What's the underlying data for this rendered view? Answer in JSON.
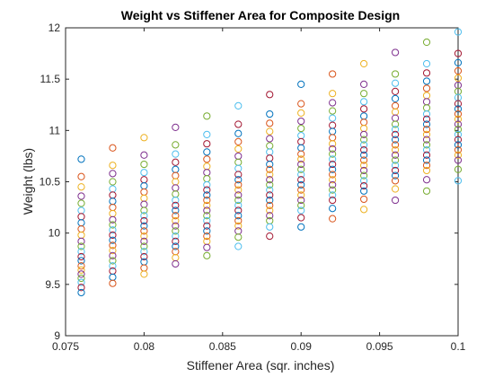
{
  "chart_data": {
    "type": "scatter",
    "title": "Weight vs Stiffener Area for Composite Design",
    "xlabel": "Stiffener Area (sqr. inches)",
    "ylabel": "Weight (lbs)",
    "xlim": [
      0.075,
      0.1
    ],
    "ylim": [
      9,
      12
    ],
    "grid": false,
    "legend": "none",
    "marker": "open-circle",
    "xticks": [
      0.075,
      0.08,
      0.085,
      0.09,
      0.095,
      0.1
    ],
    "xtick_labels": [
      "0.075",
      "0.08",
      "0.085",
      "0.09",
      "0.095",
      "0.1"
    ],
    "yticks": [
      9,
      9.5,
      10,
      10.5,
      11,
      11.5,
      12
    ],
    "ytick_labels": [
      "9",
      "9.5",
      "10",
      "10.5",
      "11",
      "11.5",
      "12"
    ],
    "colors": [
      "#0072BD",
      "#D95319",
      "#EDB120",
      "#7E2F8E",
      "#77AC30",
      "#4DBEEE",
      "#A2142F"
    ],
    "columns": [
      {
        "x": 0.076,
        "y": [
          10.72,
          10.55,
          10.45,
          10.36,
          10.29,
          10.22,
          10.16,
          10.1,
          10.04,
          9.98,
          9.92,
          9.87,
          9.82,
          9.77,
          9.73,
          9.68,
          9.64,
          9.6,
          9.56,
          9.52,
          9.47,
          9.42
        ]
      },
      {
        "x": 0.078,
        "y": [
          10.83,
          10.66,
          10.58,
          10.5,
          10.43,
          10.37,
          10.31,
          10.25,
          10.19,
          10.13,
          10.08,
          10.03,
          9.98,
          9.93,
          9.88,
          9.83,
          9.78,
          9.73,
          9.68,
          9.63,
          9.57,
          9.51
        ]
      },
      {
        "x": 0.08,
        "y": [
          10.93,
          10.76,
          10.67,
          10.59,
          10.52,
          10.46,
          10.4,
          10.34,
          10.28,
          10.22,
          10.17,
          10.12,
          10.07,
          10.02,
          9.97,
          9.92,
          9.87,
          9.82,
          9.77,
          9.72,
          9.66,
          9.6
        ]
      },
      {
        "x": 0.082,
        "y": [
          11.03,
          10.86,
          10.77,
          10.69,
          10.62,
          10.56,
          10.5,
          10.44,
          10.38,
          10.32,
          10.27,
          10.22,
          10.17,
          10.12,
          10.07,
          10.02,
          9.97,
          9.92,
          9.87,
          9.82,
          9.76,
          9.7
        ]
      },
      {
        "x": 0.084,
        "y": [
          11.14,
          10.96,
          10.87,
          10.79,
          10.72,
          10.65,
          10.59,
          10.53,
          10.47,
          10.42,
          10.37,
          10.32,
          10.27,
          10.22,
          10.17,
          10.12,
          10.07,
          10.02,
          9.97,
          9.92,
          9.86,
          9.78
        ]
      },
      {
        "x": 0.086,
        "y": [
          11.24,
          11.06,
          10.97,
          10.89,
          10.82,
          10.75,
          10.69,
          10.63,
          10.57,
          10.52,
          10.47,
          10.42,
          10.37,
          10.32,
          10.27,
          10.22,
          10.17,
          10.12,
          10.07,
          10.02,
          9.96,
          9.87
        ]
      },
      {
        "x": 0.088,
        "y": [
          11.35,
          11.16,
          11.07,
          10.99,
          10.92,
          10.85,
          10.79,
          10.73,
          10.67,
          10.62,
          10.57,
          10.52,
          10.47,
          10.42,
          10.37,
          10.32,
          10.27,
          10.22,
          10.17,
          10.12,
          10.06,
          9.97
        ]
      },
      {
        "x": 0.09,
        "y": [
          11.45,
          11.26,
          11.17,
          11.09,
          11.02,
          10.95,
          10.89,
          10.83,
          10.77,
          10.72,
          10.67,
          10.62,
          10.57,
          10.52,
          10.47,
          10.42,
          10.37,
          10.32,
          10.27,
          10.22,
          10.15,
          10.06
        ]
      },
      {
        "x": 0.092,
        "y": [
          11.55,
          11.36,
          11.27,
          11.19,
          11.12,
          11.05,
          10.99,
          10.93,
          10.87,
          10.82,
          10.77,
          10.72,
          10.67,
          10.62,
          10.57,
          10.52,
          10.47,
          10.42,
          10.37,
          10.32,
          10.24,
          10.14
        ]
      },
      {
        "x": 0.094,
        "y": [
          11.65,
          11.45,
          11.36,
          11.28,
          11.21,
          11.14,
          11.08,
          11.02,
          10.96,
          10.91,
          10.86,
          10.81,
          10.76,
          10.71,
          10.66,
          10.61,
          10.56,
          10.51,
          10.46,
          10.41,
          10.33,
          10.23
        ]
      },
      {
        "x": 0.096,
        "y": [
          11.76,
          11.55,
          11.46,
          11.38,
          11.31,
          11.24,
          11.18,
          11.12,
          11.06,
          11.01,
          10.96,
          10.91,
          10.86,
          10.81,
          10.76,
          10.71,
          10.66,
          10.61,
          10.56,
          10.51,
          10.43,
          10.32
        ]
      },
      {
        "x": 0.098,
        "y": [
          11.86,
          11.65,
          11.56,
          11.48,
          11.41,
          11.34,
          11.28,
          11.22,
          11.16,
          11.11,
          11.06,
          11.01,
          10.96,
          10.91,
          10.86,
          10.81,
          10.76,
          10.71,
          10.66,
          10.61,
          10.52,
          10.41
        ]
      },
      {
        "x": 0.1,
        "y": [
          11.96,
          11.75,
          11.66,
          11.58,
          11.51,
          11.44,
          11.38,
          11.32,
          11.26,
          11.21,
          11.16,
          11.11,
          11.06,
          11.01,
          10.96,
          10.91,
          10.86,
          10.81,
          10.76,
          10.71,
          10.62,
          10.51
        ]
      }
    ]
  }
}
